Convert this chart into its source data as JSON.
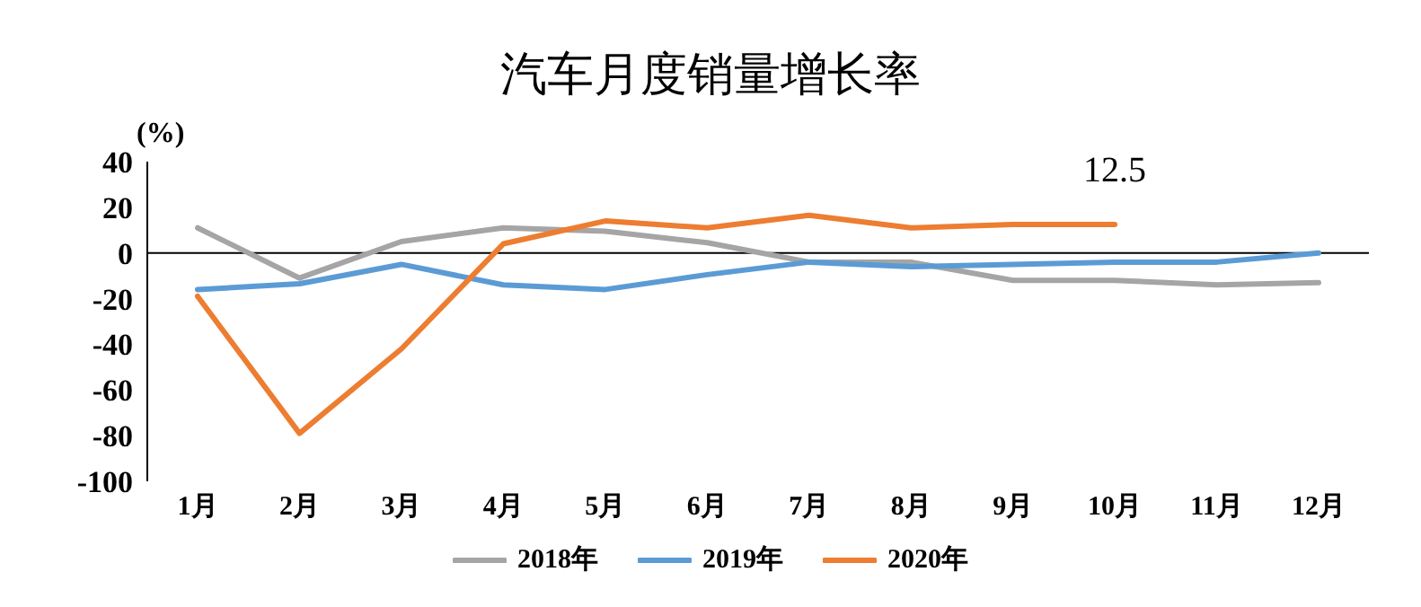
{
  "chart_data": {
    "type": "line",
    "title": "汽车月度销量增长率",
    "ylabel": "(%)",
    "categories": [
      "1月",
      "2月",
      "3月",
      "4月",
      "5月",
      "6月",
      "7月",
      "8月",
      "9月",
      "10月",
      "11月",
      "12月"
    ],
    "series": [
      {
        "name": "2018年",
        "color": "#a5a5a5",
        "values": [
          11,
          -11,
          5,
          11,
          9.5,
          4.5,
          -4,
          -4,
          -12,
          -12,
          -14,
          -13
        ]
      },
      {
        "name": "2019年",
        "color": "#5b9bd5",
        "values": [
          -16,
          -13.5,
          -5,
          -14,
          -16,
          -9.5,
          -4,
          -6,
          -5,
          -4,
          -4,
          0
        ]
      },
      {
        "name": "2020年",
        "color": "#ed7d31",
        "values": [
          -19,
          -79,
          -42,
          4,
          14,
          11,
          16.5,
          11,
          12.5,
          12.5,
          null,
          null
        ],
        "value_labels": [
          null,
          null,
          null,
          null,
          null,
          null,
          null,
          null,
          null,
          "12.5",
          null,
          null
        ]
      }
    ],
    "ylim": [
      -100,
      40
    ],
    "yticks": [
      -100,
      -80,
      -60,
      -40,
      -20,
      0,
      20,
      40
    ],
    "ref_lines": [
      {
        "axis": "y",
        "value": 0,
        "color": "#000000"
      }
    ],
    "grid": false,
    "legend": "bottom",
    "marker": "none",
    "line_style": "solid"
  }
}
